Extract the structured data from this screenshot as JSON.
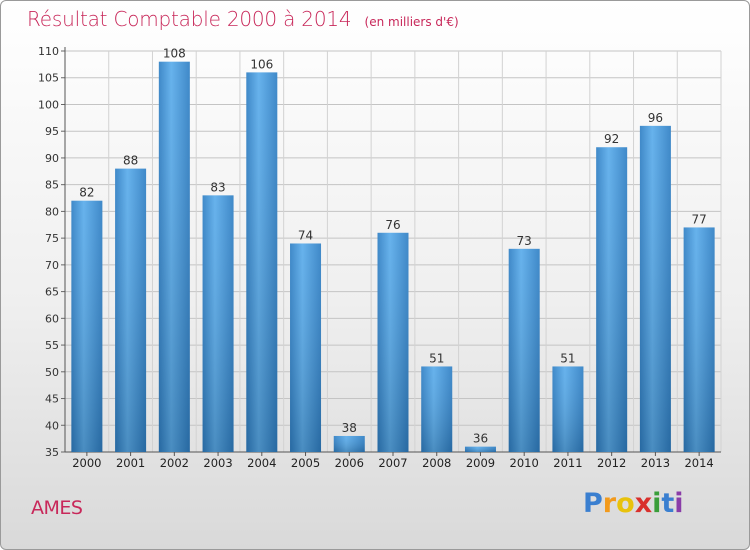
{
  "chart_data": {
    "type": "bar",
    "title": "Résultat Comptable 2000 à 2014",
    "unit_label": "(en milliers d'€)",
    "categories": [
      "2000",
      "2001",
      "2002",
      "2003",
      "2004",
      "2005",
      "2006",
      "2007",
      "2008",
      "2009",
      "2010",
      "2011",
      "2012",
      "2013",
      "2014"
    ],
    "values": [
      82,
      88,
      108,
      83,
      106,
      74,
      38,
      76,
      51,
      36,
      73,
      51,
      92,
      96,
      77
    ],
    "ylim": [
      35,
      110
    ],
    "yticks": [
      35,
      40,
      45,
      50,
      55,
      60,
      65,
      70,
      75,
      80,
      85,
      90,
      95,
      100,
      105,
      110
    ],
    "grid": true,
    "xlabel": "",
    "ylabel": "",
    "colors": {
      "bar": "#3a8fd6",
      "bar_light": "#5fb0ea",
      "title": "#c8285a"
    }
  },
  "footer": {
    "city": "AMES"
  },
  "brand": {
    "letters": [
      "P",
      "r",
      "o",
      "x",
      "i",
      "t",
      "i"
    ],
    "colors": [
      "#3a7fd0",
      "#f29a1c",
      "#e8c20c",
      "#d9302c",
      "#3a9e3a",
      "#3a7fd0",
      "#8a3ca8"
    ]
  }
}
